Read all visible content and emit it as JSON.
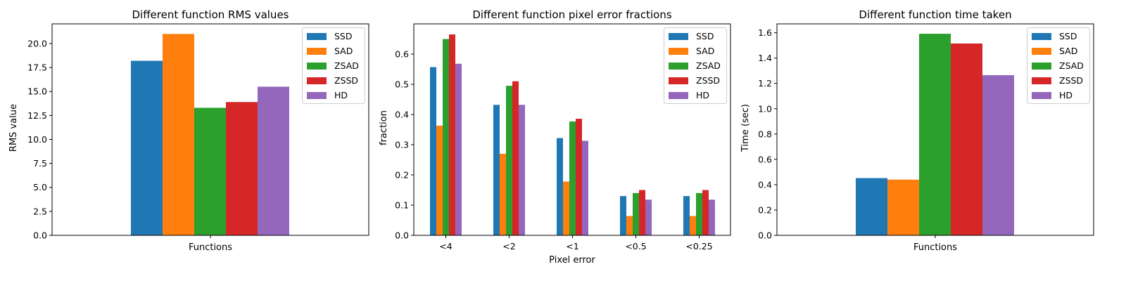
{
  "series_colors": {
    "SSD": "#1f77b4",
    "SAD": "#ff7f0e",
    "ZSAD": "#2ca02c",
    "ZSSD": "#d62728",
    "HD": "#9467bd"
  },
  "chart_data": [
    {
      "type": "bar",
      "title": "Different function RMS values",
      "xlabel": "",
      "ylabel": "RMS value",
      "categories": [
        "Functions"
      ],
      "series": [
        {
          "name": "SSD",
          "values": [
            18.2
          ]
        },
        {
          "name": "SAD",
          "values": [
            21.0
          ]
        },
        {
          "name": "ZSAD",
          "values": [
            13.3
          ]
        },
        {
          "name": "ZSSD",
          "values": [
            13.9
          ]
        },
        {
          "name": "HD",
          "values": [
            15.5
          ]
        }
      ],
      "ylim": [
        0,
        22.05
      ],
      "yticks": [
        0,
        2.5,
        5,
        7.5,
        10,
        12.5,
        15,
        17.5,
        20
      ],
      "ytick_labels": [
        "0.0",
        "2.5",
        "5.0",
        "7.5",
        "10.0",
        "12.5",
        "15.0",
        "17.5",
        "20.0"
      ],
      "grid": false,
      "legend_position": "top-right"
    },
    {
      "type": "bar",
      "title": "Different function pixel error fractions",
      "xlabel": "Pixel error",
      "ylabel": "fraction",
      "categories": [
        "<4",
        "<2",
        "<1",
        "<0.5",
        "<0.25"
      ],
      "series": [
        {
          "name": "SSD",
          "values": [
            0.557,
            0.432,
            0.322,
            0.13,
            0.13
          ]
        },
        {
          "name": "SAD",
          "values": [
            0.363,
            0.27,
            0.178,
            0.064,
            0.064
          ]
        },
        {
          "name": "ZSAD",
          "values": [
            0.65,
            0.495,
            0.377,
            0.14,
            0.14
          ]
        },
        {
          "name": "ZSSD",
          "values": [
            0.665,
            0.51,
            0.386,
            0.15,
            0.15
          ]
        },
        {
          "name": "HD",
          "values": [
            0.568,
            0.432,
            0.313,
            0.118,
            0.118
          ]
        }
      ],
      "ylim": [
        0,
        0.7
      ],
      "yticks": [
        0,
        0.1,
        0.2,
        0.3,
        0.4,
        0.5,
        0.6
      ],
      "ytick_labels": [
        "0.0",
        "0.1",
        "0.2",
        "0.3",
        "0.4",
        "0.5",
        "0.6"
      ],
      "grid": false,
      "legend_position": "top-right"
    },
    {
      "type": "bar",
      "title": "Different function time taken",
      "xlabel": "",
      "ylabel": "Time (sec)",
      "categories": [
        "Functions"
      ],
      "series": [
        {
          "name": "SSD",
          "values": [
            0.452
          ]
        },
        {
          "name": "SAD",
          "values": [
            0.44
          ]
        },
        {
          "name": "ZSAD",
          "values": [
            1.592
          ]
        },
        {
          "name": "ZSSD",
          "values": [
            1.515
          ]
        },
        {
          "name": "HD",
          "values": [
            1.265
          ]
        }
      ],
      "ylim": [
        0,
        1.67
      ],
      "yticks": [
        0,
        0.2,
        0.4,
        0.6,
        0.8,
        1.0,
        1.2,
        1.4,
        1.6
      ],
      "ytick_labels": [
        "0.0",
        "0.2",
        "0.4",
        "0.6",
        "0.8",
        "1.0",
        "1.2",
        "1.4",
        "1.6"
      ],
      "grid": false,
      "legend_position": "top-right"
    }
  ]
}
